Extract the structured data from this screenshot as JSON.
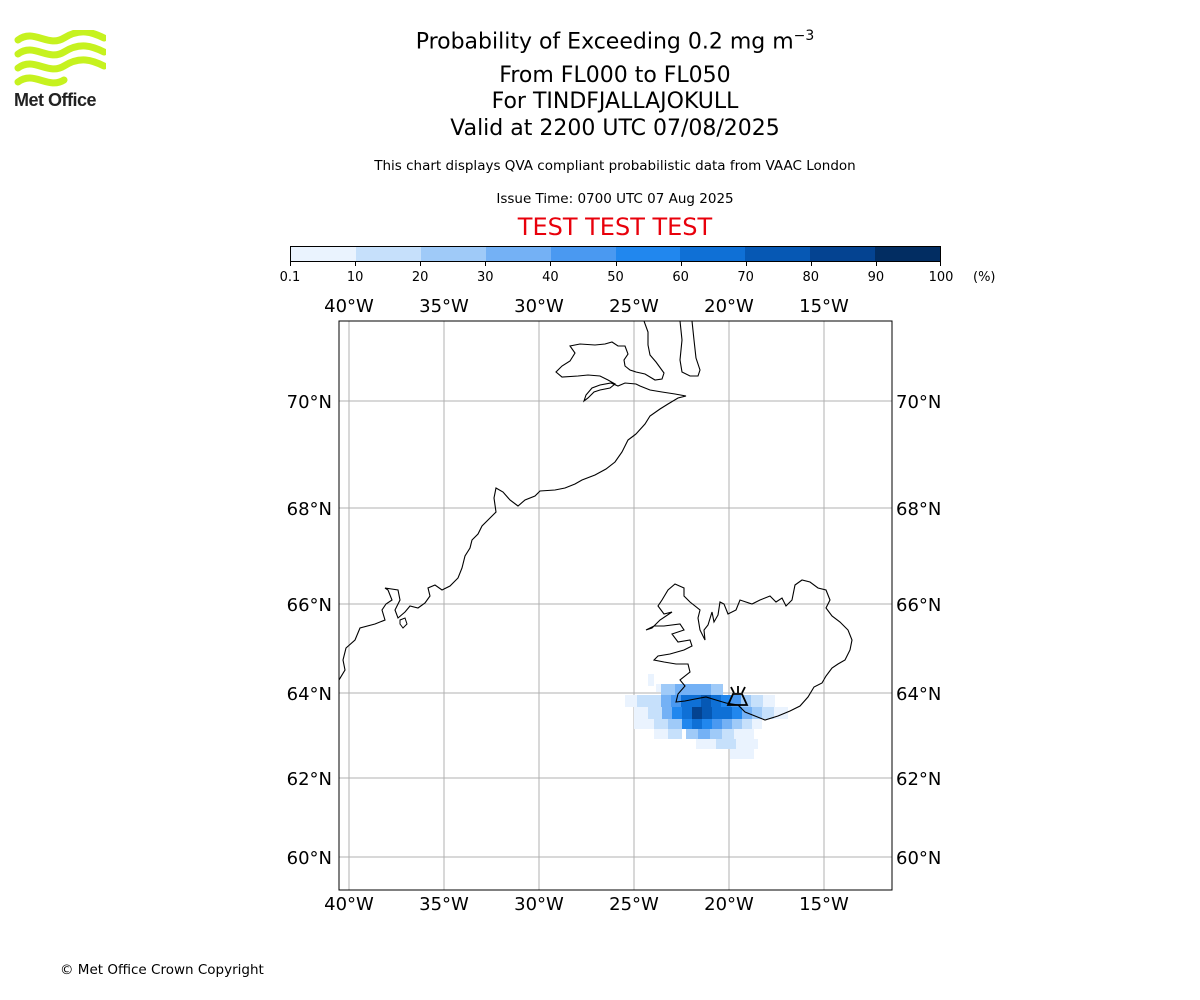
{
  "logo": {
    "text": "Met Office",
    "color": "#c6f21f"
  },
  "header": {
    "title_prefix": "Probability of Exceeding 0.2 mg m",
    "title_exponent": "−3",
    "flight_levels": "From FL000 to FL050",
    "volcano": "For TINDFJALLAJOKULL",
    "valid": "Valid at 2200 UTC 07/08/2025",
    "subtitle": "This chart displays QVA compliant probabilistic data from VAAC London",
    "issue_time": "Issue Time: 0700 UTC 07 Aug 2025",
    "banner": "TEST TEST TEST",
    "banner_color": "#e8000b"
  },
  "colorbar": {
    "ticks": [
      "0.1",
      "10",
      "20",
      "30",
      "40",
      "50",
      "60",
      "70",
      "80",
      "90",
      "100"
    ],
    "unit": "(%)",
    "colors": [
      "#eaf3fe",
      "#c6e0fb",
      "#9fcaf8",
      "#74b1f5",
      "#4a99f1",
      "#2187ee",
      "#0f70d6",
      "#0658b4",
      "#044391",
      "#022d62"
    ]
  },
  "map": {
    "lon_ticks": [
      "40°W",
      "35°W",
      "30°W",
      "25°W",
      "20°W",
      "15°W"
    ],
    "lat_ticks": [
      "70°N",
      "68°N",
      "66°N",
      "64°N",
      "62°N",
      "60°N"
    ],
    "volcano_icon": "volcano-icon",
    "plume_icon": "ash-probability-field"
  },
  "footer": {
    "copyright": "© Met Office Crown Copyright"
  }
}
